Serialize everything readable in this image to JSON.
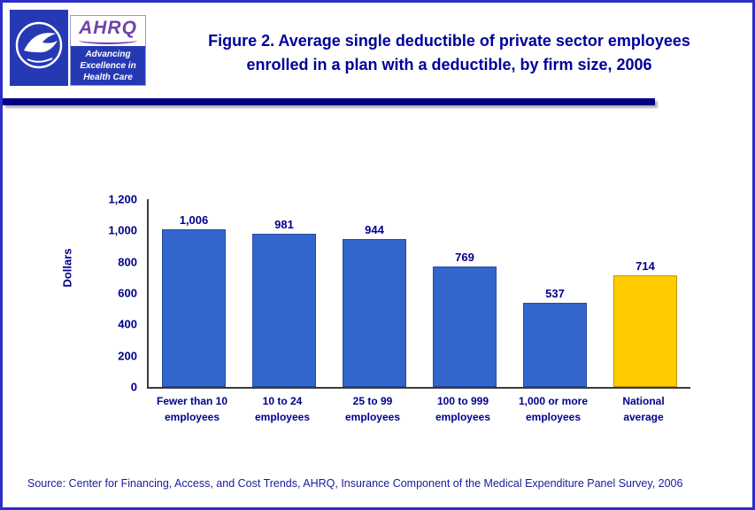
{
  "header": {
    "hhs_logo_name": "HHS seal",
    "ahrq": {
      "name": "AHRQ",
      "tagline_line1": "Advancing",
      "tagline_line2": "Excellence in",
      "tagline_line3": "Health Care"
    },
    "title_line1": "Figure 2. Average single deductible of private sector employees",
    "title_line2": "enrolled in a plan with a deductible, by firm size, 2006"
  },
  "chart_data": {
    "type": "bar",
    "title": "Figure 2. Average single deductible of private sector employees enrolled in a plan with a deductible, by firm size, 2006",
    "xlabel": "",
    "ylabel": "Dollars",
    "ylim": [
      0,
      1200
    ],
    "ytick_values": [
      0,
      200,
      400,
      600,
      800,
      1000,
      1200
    ],
    "ytick_labels": [
      "0",
      "200",
      "400",
      "600",
      "800",
      "1,000",
      "1,200"
    ],
    "grid": false,
    "legend": "none",
    "categories": [
      "Fewer than 10 employees",
      "10 to 24 employees",
      "25 to 99 employees",
      "100 to 999 employees",
      "1,000 or more employees",
      "National average"
    ],
    "values": [
      1006,
      981,
      944,
      769,
      537,
      714
    ],
    "bars": [
      {
        "id": "fewer-than-10-employees",
        "label_lines": [
          "Fewer than 10",
          "employees"
        ],
        "value": 1006,
        "value_label": "1,006",
        "color": "#3366CC",
        "border_color": "#244a9e"
      },
      {
        "id": "10-to-24-employees",
        "label_lines": [
          "10 to 24",
          "employees"
        ],
        "value": 981,
        "value_label": "981",
        "color": "#3366CC",
        "border_color": "#244a9e"
      },
      {
        "id": "25-to-99-employees",
        "label_lines": [
          "25 to 99",
          "employees"
        ],
        "value": 944,
        "value_label": "944",
        "color": "#3366CC",
        "border_color": "#244a9e"
      },
      {
        "id": "100-to-999-employees",
        "label_lines": [
          "100 to 999",
          "employees"
        ],
        "value": 769,
        "value_label": "769",
        "color": "#3366CC",
        "border_color": "#244a9e"
      },
      {
        "id": "1000-or-more-employees",
        "label_lines": [
          "1,000 or more",
          "employees"
        ],
        "value": 537,
        "value_label": "537",
        "color": "#3366CC",
        "border_color": "#244a9e"
      },
      {
        "id": "national-average",
        "label_lines": [
          "National",
          "average"
        ],
        "value": 714,
        "value_label": "714",
        "color": "#FFCC00",
        "border_color": "#bf9600"
      }
    ]
  },
  "footer": {
    "source": "Source: Center for Financing, Access, and Cost Trends, AHRQ, Insurance Component of the Medical Expenditure Panel Survey, 2006"
  },
  "colors": {
    "page_border": "#2d2dc8",
    "title_navy": "#00009a",
    "text_navy": "#00008b",
    "divider_navy": "#000080",
    "logo_blue": "#2639b4",
    "ahrq_purple": "#6f42a8",
    "bar_blue": "#3366CC",
    "bar_gold": "#FFCC00"
  }
}
